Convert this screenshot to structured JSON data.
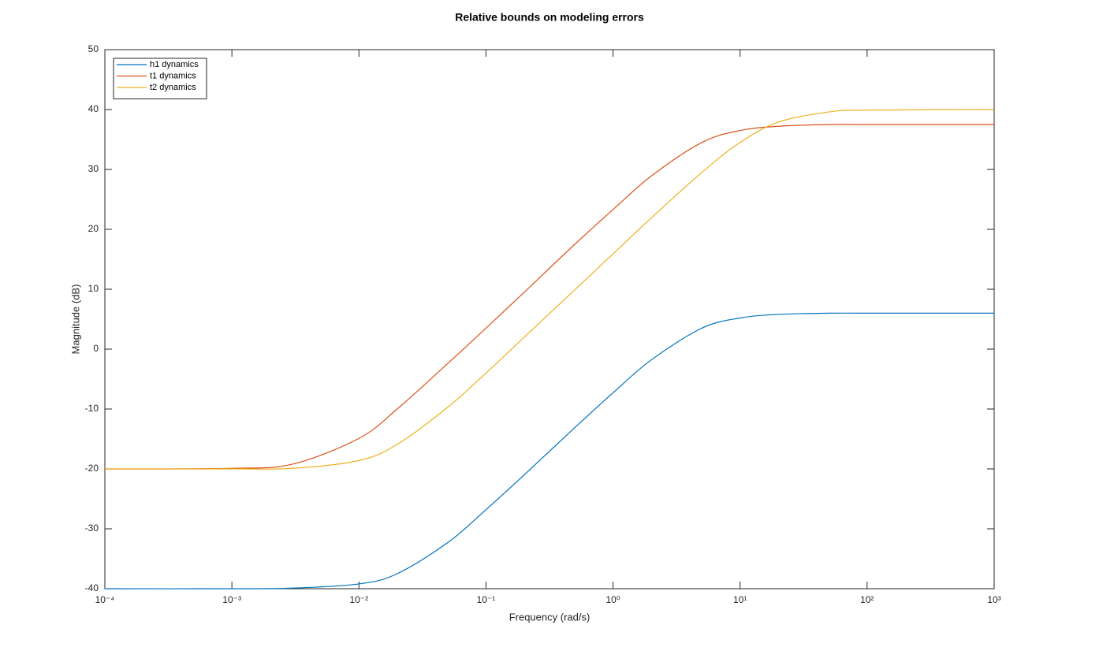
{
  "chart_data": {
    "type": "line",
    "title": "Relative bounds on modeling errors",
    "x_label": "Frequency (rad/s)",
    "y_label": "Magnitude (dB)",
    "x": [
      0.0001,
      0.001,
      0.003,
      0.01,
      0.02,
      0.05,
      0.1,
      0.2,
      0.5,
      1,
      2,
      5,
      10,
      20,
      50,
      100,
      1000
    ],
    "series": [
      {
        "name": "h1 dynamics",
        "color": "#0072bd",
        "values": [
          -40.0,
          -40.0,
          -39.9,
          -39.2,
          -37.5,
          -32.3,
          -26.8,
          -21.0,
          -13.1,
          -7.3,
          -1.8,
          3.5,
          5.2,
          5.8,
          6.0,
          6.0,
          6.0
        ]
      },
      {
        "name": "t1 dynamics",
        "color": "#d95319",
        "values": [
          -20.0,
          -19.9,
          -19.2,
          -14.9,
          -10.0,
          -2.4,
          3.5,
          9.5,
          17.5,
          23.3,
          28.9,
          34.5,
          36.5,
          37.2,
          37.5,
          37.5,
          37.5
        ]
      },
      {
        "name": "t2 dynamics",
        "color": "#edb120",
        "values": [
          -20.0,
          -20.0,
          -19.9,
          -18.6,
          -15.9,
          -9.7,
          -4.0,
          2.0,
          9.9,
          15.9,
          21.9,
          29.5,
          34.5,
          37.9,
          39.6,
          39.9,
          40.0
        ]
      }
    ],
    "xscale": "log",
    "xlim": [
      0.0001,
      1000
    ],
    "xticks": [
      {
        "value": 0.0001,
        "label": "10⁻⁴"
      },
      {
        "value": 0.001,
        "label": "10⁻³"
      },
      {
        "value": 0.01,
        "label": "10⁻²"
      },
      {
        "value": 0.1,
        "label": "10⁻¹"
      },
      {
        "value": 1,
        "label": "10⁰"
      },
      {
        "value": 10,
        "label": "10¹"
      },
      {
        "value": 100,
        "label": "10²"
      },
      {
        "value": 1000,
        "label": "10³"
      }
    ],
    "ylim": [
      -40,
      50
    ],
    "yticks": [
      -40,
      -30,
      -20,
      -10,
      0,
      10,
      20,
      30,
      40,
      50
    ],
    "grid": false,
    "legend": "upper-left"
  }
}
